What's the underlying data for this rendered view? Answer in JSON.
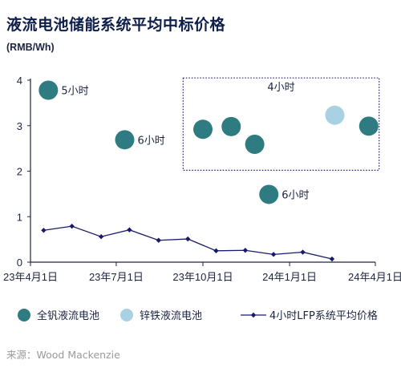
{
  "title": "液流电池储能系统平均中标价格",
  "unit": "(RMB/Wh)",
  "source": "来源：Wood Mackenzie",
  "chart_data": {
    "type": "scatter",
    "x_ticks": [
      "23年4月1日",
      "23年7月1日",
      "23年10月1日",
      "24年1月1日",
      "24年4月1日"
    ],
    "ylim": [
      0,
      4
    ],
    "y_ticks": [
      "0",
      "1",
      "2",
      "3",
      "4"
    ],
    "grid": false,
    "legend_position": "bottom",
    "series": [
      {
        "name": "全钒液流电池",
        "kind": "scatter",
        "color": "#2e7b82",
        "points": [
          {
            "x": "2023-04-20",
            "y": 3.78,
            "label": "5小时"
          },
          {
            "x": "2023-07-10",
            "y": 2.69,
            "label": "6小时"
          },
          {
            "x": "2023-10-01",
            "y": 2.92,
            "label": ""
          },
          {
            "x": "2023-10-31",
            "y": 2.98,
            "label": ""
          },
          {
            "x": "2023-11-25",
            "y": 2.59,
            "label": ""
          },
          {
            "x": "2023-12-10",
            "y": 1.49,
            "label": "6小时"
          },
          {
            "x": "2024-03-25",
            "y": 2.99,
            "label": ""
          }
        ]
      },
      {
        "name": "锌铁液流电池",
        "kind": "scatter",
        "color": "#a9d1e4",
        "points": [
          {
            "x": "2024-02-18",
            "y": 3.23,
            "label": ""
          }
        ]
      },
      {
        "name": "4小时LFP系统平均价格",
        "kind": "line",
        "color": "#1a1a6b",
        "points": [
          {
            "x": "2023-04-15",
            "y": 0.7
          },
          {
            "x": "2023-05-15",
            "y": 0.79
          },
          {
            "x": "2023-06-15",
            "y": 0.56
          },
          {
            "x": "2023-07-15",
            "y": 0.71
          },
          {
            "x": "2023-08-15",
            "y": 0.48
          },
          {
            "x": "2023-09-15",
            "y": 0.51
          },
          {
            "x": "2023-10-15",
            "y": 0.25
          },
          {
            "x": "2023-11-15",
            "y": 0.26
          },
          {
            "x": "2023-12-15",
            "y": 0.17
          },
          {
            "x": "2024-01-15",
            "y": 0.22
          },
          {
            "x": "2024-02-15",
            "y": 0.07
          }
        ]
      }
    ],
    "annotation": {
      "text": "4小时",
      "x_range": [
        "2023-09-10",
        "2024-04-05"
      ],
      "y_range": [
        2.02,
        4.05
      ]
    }
  }
}
